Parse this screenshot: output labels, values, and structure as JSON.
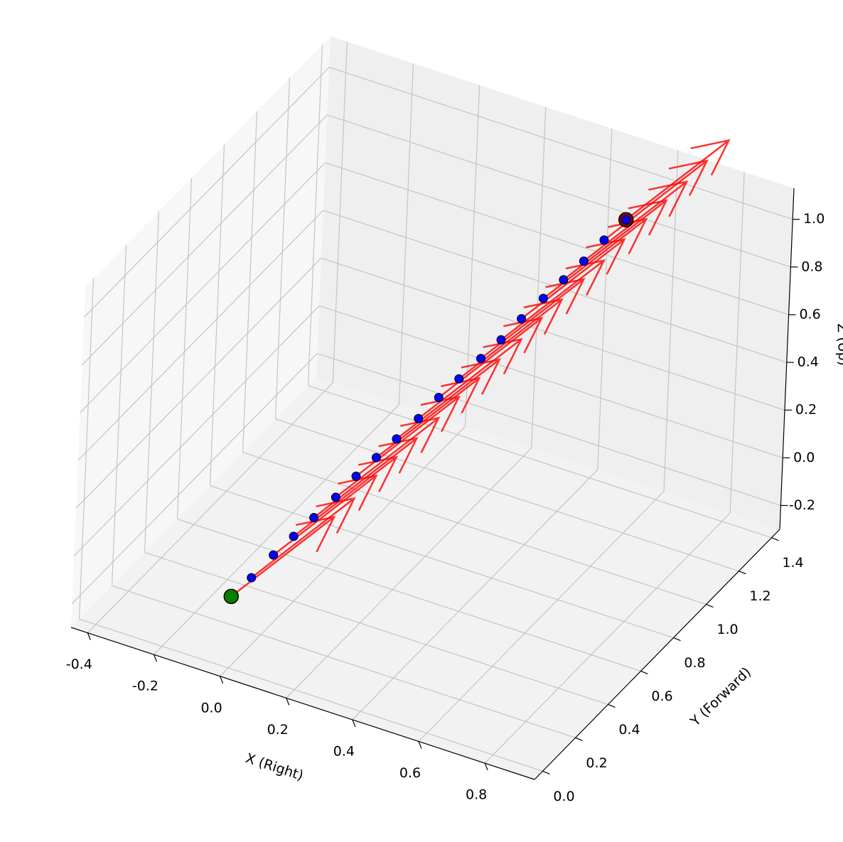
{
  "chart_data": {
    "type": "quiver3d",
    "x_label": "X (Right)",
    "y_label": "Y (Forward)",
    "z_label": "Z (Up)",
    "xlim": [
      -0.45,
      0.95
    ],
    "ylim": [
      -0.05,
      1.45
    ],
    "zlim": [
      -0.3,
      1.13
    ],
    "xticks": [
      -0.4,
      -0.2,
      {
        "value": 0,
        "label": "0.0"
      },
      0.2,
      0.4,
      0.6,
      0.8
    ],
    "yticks": [
      {
        "value": 0,
        "label": "0.0"
      },
      0.2,
      0.4,
      0.6,
      0.8,
      {
        "value": 1,
        "label": "1.0"
      },
      1.2,
      1.4
    ],
    "zticks": [
      -0.2,
      {
        "value": 0,
        "label": "0.0"
      },
      0.2,
      0.4,
      0.6,
      0.8,
      {
        "value": 1,
        "label": "1.0"
      }
    ],
    "grid": true,
    "points": {
      "color": "blue",
      "x": [
        0,
        0.03,
        0.06,
        0.09,
        0.12,
        0.15,
        0.18,
        0.21,
        0.24,
        0.27,
        0.3,
        0.33,
        0.36,
        0.39,
        0.42,
        0.45,
        0.48,
        0.51,
        0.54,
        0.57
      ],
      "y": [
        0,
        0.06,
        0.13,
        0.19,
        0.25,
        0.32,
        0.38,
        0.44,
        0.5,
        0.57,
        0.63,
        0.69,
        0.76,
        0.82,
        0.88,
        0.95,
        1.01,
        1.07,
        1.13,
        1.2
      ],
      "z": [
        0,
        0.05,
        0.11,
        0.16,
        0.21,
        0.26,
        0.32,
        0.37,
        0.42,
        0.47,
        0.53,
        0.58,
        0.63,
        0.68,
        0.74,
        0.79,
        0.84,
        0.89,
        0.95,
        1.0
      ]
    },
    "arrows": {
      "color": "red",
      "u": [
        0.18,
        0.18,
        0.18,
        0.18,
        0.18,
        0.18,
        0.18,
        0.18,
        0.18,
        0.18,
        0.18,
        0.18,
        0.18,
        0.18,
        0.18,
        0.18,
        0.18,
        0.18,
        0.18,
        0.18
      ],
      "v": [
        0.25,
        0.25,
        0.25,
        0.25,
        0.25,
        0.25,
        0.25,
        0.25,
        0.25,
        0.25,
        0.25,
        0.25,
        0.25,
        0.25,
        0.25,
        0.25,
        0.25,
        0.25,
        0.25,
        0.25
      ],
      "w": [
        0.24,
        0.24,
        0.24,
        0.24,
        0.24,
        0.24,
        0.24,
        0.24,
        0.24,
        0.24,
        0.24,
        0.24,
        0.24,
        0.24,
        0.24,
        0.24,
        0.24,
        0.24,
        0.24,
        0.24
      ]
    },
    "start_color": "green",
    "end_color": "#8b0000"
  }
}
